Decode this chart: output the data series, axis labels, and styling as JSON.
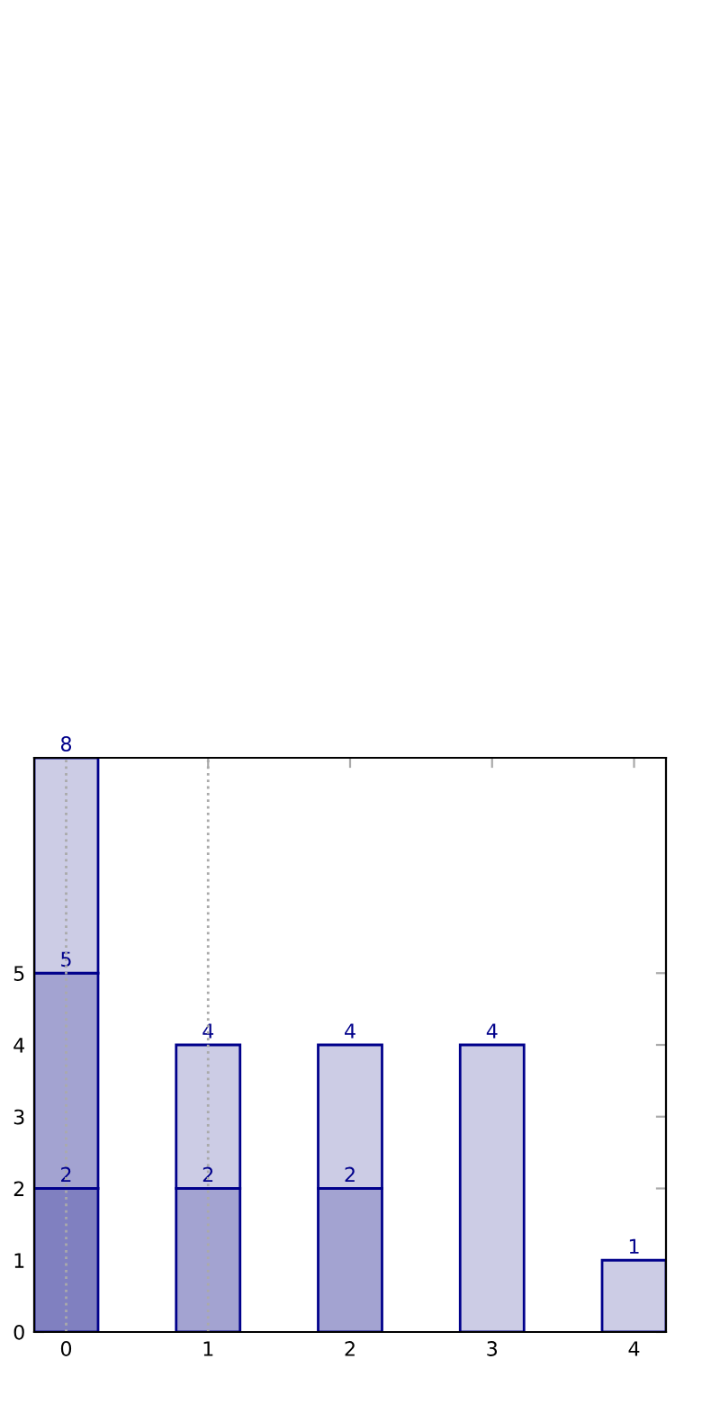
{
  "chart_data": {
    "type": "bar",
    "x": [
      0,
      1,
      2,
      3,
      4
    ],
    "stacked": true,
    "series": [
      {
        "colors": [
          "#8080c0",
          "#a3a3d1",
          "#a3a3d1",
          "#cccce5",
          "#cccce5"
        ],
        "values": [
          2,
          2,
          2,
          4,
          1
        ]
      },
      {
        "colors": [
          "#a3a3d1",
          "#cccce5",
          "#cccce5",
          null,
          null
        ],
        "values": [
          3,
          2,
          2,
          null,
          null
        ]
      },
      {
        "colors": [
          "#cccce5",
          null,
          null,
          null,
          null
        ],
        "values": [
          3,
          null,
          null,
          null,
          null
        ]
      }
    ],
    "xlim": [
      -0.225,
      4.225
    ],
    "xticks": [
      0,
      1,
      2,
      3,
      4
    ],
    "ylim": [
      0,
      8
    ],
    "yticks": [
      0,
      1,
      2,
      3,
      4,
      5
    ],
    "grid": false,
    "annotations": [
      {
        "text": "8",
        "x": 0,
        "y": 8
      },
      {
        "text": "5",
        "x": 0,
        "y": 5
      },
      {
        "text": "2",
        "x": 0,
        "y": 2
      },
      {
        "text": "4",
        "x": 1,
        "y": 4
      },
      {
        "text": "2",
        "x": 1,
        "y": 2
      },
      {
        "text": "4",
        "x": 2,
        "y": 4
      },
      {
        "text": "2",
        "x": 2,
        "y": 2
      },
      {
        "text": "4",
        "x": 3,
        "y": 4
      },
      {
        "text": "1",
        "x": 4,
        "y": 1
      }
    ],
    "ref_lines": [
      {
        "axis": "x",
        "value": 0,
        "color": "#aaaaaa",
        "line_style": "dotted"
      },
      {
        "axis": "x",
        "value": 1,
        "color": "#aaaaaa",
        "line_style": "dotted"
      }
    ]
  }
}
